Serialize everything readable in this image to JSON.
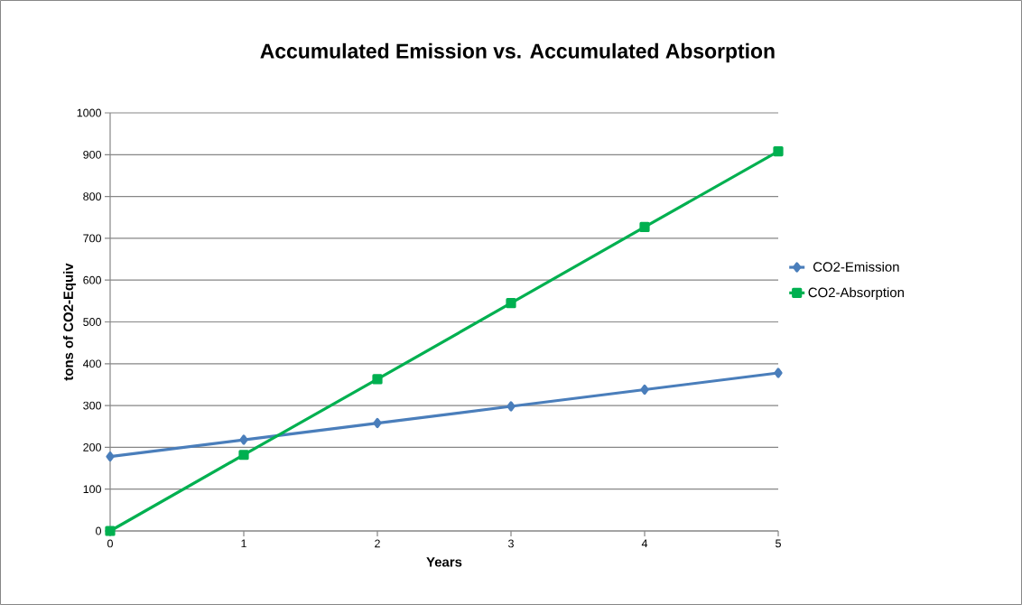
{
  "chart_data": {
    "type": "line",
    "title": "Accumulated Emission vs. Accumulated Absorption",
    "xlabel": "Years",
    "ylabel": "tons of CO2-Equiv",
    "x": [
      0,
      1,
      2,
      3,
      4,
      5
    ],
    "series": [
      {
        "name": "CO2-Emission",
        "color": "#4a7ebb",
        "marker": "diamond",
        "values": [
          178,
          218,
          258,
          298,
          338,
          378
        ]
      },
      {
        "name": "CO2-Absorption",
        "color": "#00b050",
        "marker": "square",
        "values": [
          0,
          182,
          363,
          545,
          727,
          908
        ]
      }
    ],
    "xlim": [
      0,
      5
    ],
    "xticks": [
      0,
      1,
      2,
      3,
      4,
      5
    ],
    "ylim": [
      0,
      1000
    ],
    "yticks": [
      0,
      100,
      200,
      300,
      400,
      500,
      600,
      700,
      800,
      900,
      1000
    ],
    "grid": "y",
    "legend": "right",
    "line_style": "solid"
  }
}
